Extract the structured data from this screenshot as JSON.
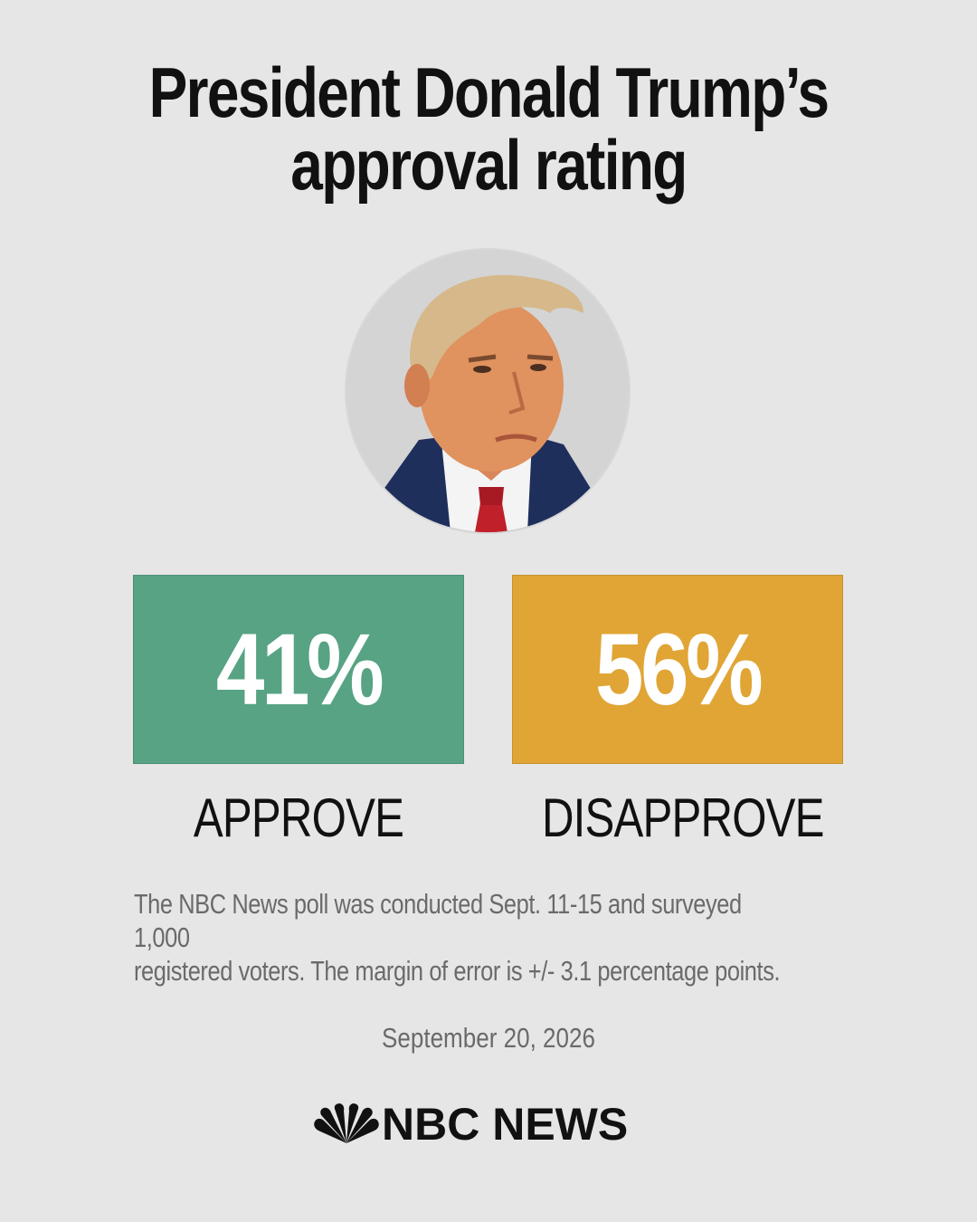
{
  "title": {
    "line1": "President Donald Trump’s",
    "line2": "approval rating"
  },
  "portrait": {
    "icon": "portrait-photo"
  },
  "stats": {
    "approve": {
      "value": "41%",
      "label": "APPROVE",
      "color": "#57a384"
    },
    "disapprove": {
      "value": "56%",
      "label": "DISAPPROVE",
      "color": "#e0a535"
    }
  },
  "footnote": {
    "line1": "The NBC News poll was conducted Sept. 11-15 and surveyed 1,000",
    "line2": "registered voters. The margin of error is +/- 3.1 percentage points."
  },
  "date": "September 20, 2026",
  "logo": {
    "text": "NBC NEWS",
    "icon": "nbc-peacock-icon"
  }
}
